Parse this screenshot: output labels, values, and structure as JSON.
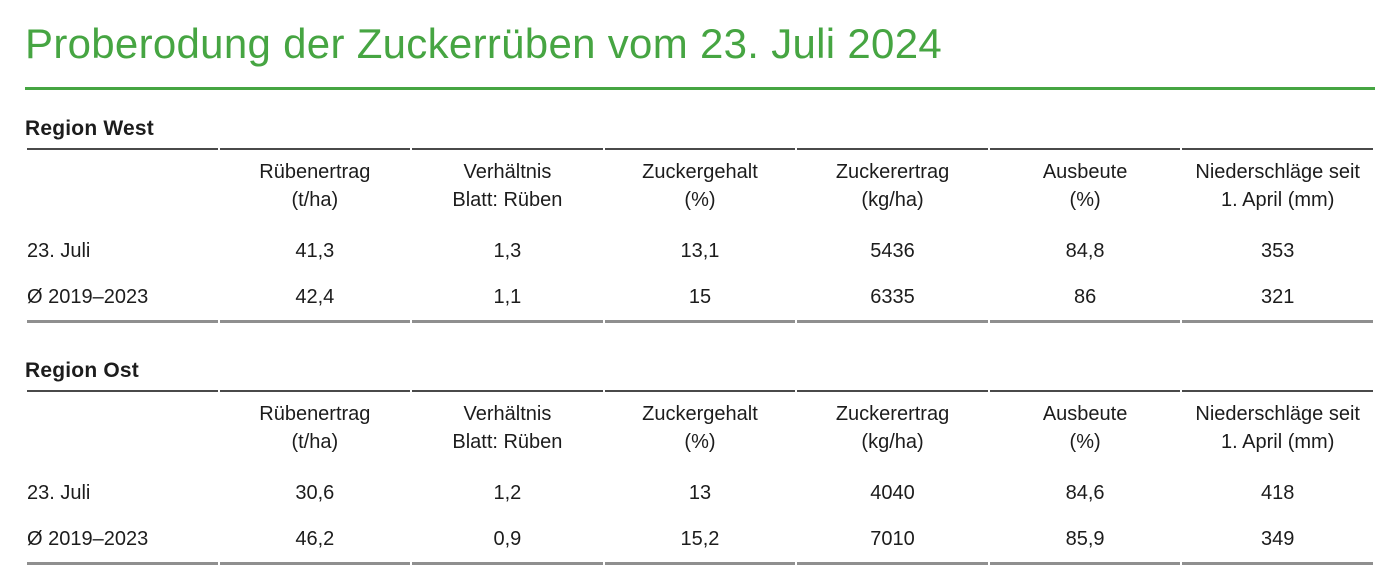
{
  "title": "Proberodung der Zuckerrüben vom 23. Juli 2024",
  "accent_color": "#46a542",
  "columns": [
    {
      "line1": "Rübenertrag",
      "line2": "(t/ha)"
    },
    {
      "line1": "Verhältnis",
      "line2": "Blatt: Rüben"
    },
    {
      "line1": "Zuckergehalt",
      "line2": "(%)"
    },
    {
      "line1": "Zuckerertrag",
      "line2": "(kg/ha)"
    },
    {
      "line1": "Ausbeute",
      "line2": "(%)"
    },
    {
      "line1": "Niederschläge seit",
      "line2": "1. April (mm)"
    }
  ],
  "sections": [
    {
      "name": "Region West",
      "rows": [
        {
          "label": "23. Juli",
          "values": [
            "41,3",
            "1,3",
            "13,1",
            "5436",
            "84,8",
            "353"
          ]
        },
        {
          "label": "Ø 2019–2023",
          "values": [
            "42,4",
            "1,1",
            "15",
            "6335",
            "86",
            "321"
          ]
        }
      ]
    },
    {
      "name": "Region Ost",
      "rows": [
        {
          "label": "23. Juli",
          "values": [
            "30,6",
            "1,2",
            "13",
            "4040",
            "84,6",
            "418"
          ]
        },
        {
          "label": "Ø 2019–2023",
          "values": [
            "46,2",
            "0,9",
            "15,2",
            "7010",
            "85,9",
            "349"
          ]
        }
      ]
    }
  ]
}
